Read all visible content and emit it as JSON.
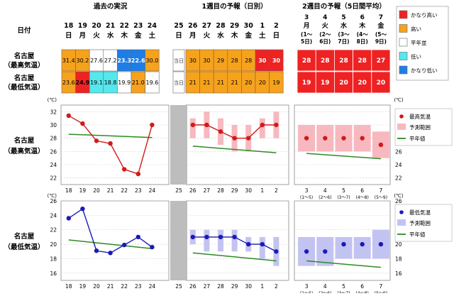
{
  "headers": {
    "past": "過去の実況",
    "week1": "1週目の予報（日別）",
    "week2": "2週目の予報（5日間平均）",
    "date_label": "日付"
  },
  "today_label": "当日",
  "days_past": [
    {
      "d": "18",
      "w": "日"
    },
    {
      "d": "19",
      "w": "月"
    },
    {
      "d": "20",
      "w": "火"
    },
    {
      "d": "21",
      "w": "水"
    },
    {
      "d": "22",
      "w": "木"
    },
    {
      "d": "23",
      "w": "金"
    },
    {
      "d": "24",
      "w": "土"
    }
  ],
  "day_today": {
    "d": "25",
    "w": "日"
  },
  "days_w1": [
    {
      "d": "26",
      "w": "月"
    },
    {
      "d": "27",
      "w": "火"
    },
    {
      "d": "28",
      "w": "水"
    },
    {
      "d": "29",
      "w": "木"
    },
    {
      "d": "30",
      "w": "金"
    },
    {
      "d": "1",
      "w": "土"
    },
    {
      "d": "2",
      "w": "日"
    }
  ],
  "days_w2": [
    {
      "d": "3",
      "w": "月",
      "r1": "(1～",
      "r2": "5日)",
      "range": "(1～5)"
    },
    {
      "d": "4",
      "w": "火",
      "r1": "(2～",
      "r2": "6日)",
      "range": "(2～6)"
    },
    {
      "d": "5",
      "w": "水",
      "r1": "(3～",
      "r2": "7日)",
      "range": "(3～7)"
    },
    {
      "d": "6",
      "w": "木",
      "r1": "(4～",
      "r2": "8日)",
      "range": "(4～8)"
    },
    {
      "d": "7",
      "w": "金",
      "r1": "(5～",
      "r2": "9日)",
      "range": "(5～9)"
    }
  ],
  "rows": {
    "max_label_1": "名古屋",
    "max_label_2": "（最高気温）",
    "min_label_1": "名古屋",
    "min_label_2": "（最低気温）"
  },
  "table": {
    "max": {
      "past": [
        {
          "v": "31.4",
          "c": "high"
        },
        {
          "v": "30.2",
          "c": "high"
        },
        {
          "v": "27.6",
          "c": "normal"
        },
        {
          "v": "27.2",
          "c": "normal"
        },
        {
          "v": "23.3",
          "c": "verylow"
        },
        {
          "v": "22.6",
          "c": "verylow"
        },
        {
          "v": "30.0",
          "c": "high"
        }
      ],
      "w1": [
        {
          "v": "30",
          "c": "high"
        },
        {
          "v": "30",
          "c": "high"
        },
        {
          "v": "29",
          "c": "high"
        },
        {
          "v": "28",
          "c": "high"
        },
        {
          "v": "28",
          "c": "high"
        },
        {
          "v": "30",
          "c": "veryhigh"
        },
        {
          "v": "30",
          "c": "veryhigh"
        }
      ],
      "w2": [
        {
          "v": "28",
          "c": "veryhigh"
        },
        {
          "v": "28",
          "c": "veryhigh"
        },
        {
          "v": "28",
          "c": "veryhigh"
        },
        {
          "v": "28",
          "c": "veryhigh"
        },
        {
          "v": "27",
          "c": "veryhigh"
        }
      ]
    },
    "min": {
      "past": [
        {
          "v": "23.6",
          "c": "high"
        },
        {
          "v": "24.9",
          "c": "veryhigh"
        },
        {
          "v": "19.1",
          "c": "low"
        },
        {
          "v": "18.8",
          "c": "low"
        },
        {
          "v": "19.9",
          "c": "normal"
        },
        {
          "v": "21.0",
          "c": "high"
        },
        {
          "v": "19.6",
          "c": "normal"
        }
      ],
      "w1": [
        {
          "v": "21",
          "c": "high"
        },
        {
          "v": "21",
          "c": "high"
        },
        {
          "v": "21",
          "c": "high"
        },
        {
          "v": "21",
          "c": "high"
        },
        {
          "v": "20",
          "c": "high"
        },
        {
          "v": "20",
          "c": "high"
        },
        {
          "v": "19",
          "c": "high"
        }
      ],
      "w2": [
        {
          "v": "19",
          "c": "veryhigh"
        },
        {
          "v": "19",
          "c": "veryhigh"
        },
        {
          "v": "20",
          "c": "veryhigh"
        },
        {
          "v": "20",
          "c": "veryhigh"
        },
        {
          "v": "20",
          "c": "veryhigh"
        }
      ]
    }
  },
  "legend_table": [
    {
      "label": "かなり高い",
      "color": "#ee2222"
    },
    {
      "label": "高い",
      "color": "#f7a21c"
    },
    {
      "label": "平年並",
      "color": "#ffffff"
    },
    {
      "label": "低い",
      "color": "#55e8ee"
    },
    {
      "label": "かなり低い",
      "color": "#1e7ee8"
    }
  ],
  "colors": {
    "veryhigh": "#ee2222",
    "high": "#f7a21c",
    "normal": "#ffffff",
    "low": "#55e8ee",
    "verylow": "#1e7ee8",
    "max_line": "#d11a1a",
    "min_line": "#1b1bb5",
    "normal_line": "#2e8b22",
    "max_band": "#f7b8bf",
    "min_band": "#c3c3f2",
    "today": "#bdbdbd"
  },
  "chart_data": [
    {
      "type": "line",
      "name": "max",
      "unit": "(℃)",
      "ylim": [
        21,
        33
      ],
      "yticks": [
        22,
        24,
        26,
        28,
        30,
        32
      ],
      "legend": {
        "obs": "最高気温",
        "band": "予測範囲",
        "normal": "平年値"
      },
      "past": {
        "x": [
          "18",
          "19",
          "20",
          "21",
          "22",
          "23",
          "24"
        ],
        "values": [
          31.4,
          30.2,
          27.6,
          27.2,
          23.3,
          22.6,
          30.0
        ],
        "normal": [
          28.6,
          28.1
        ]
      },
      "w1": {
        "x": [
          "26",
          "27",
          "28",
          "29",
          "30",
          "1",
          "2"
        ],
        "values": [
          30,
          30,
          29,
          28,
          28,
          30,
          30
        ],
        "range": [
          [
            28,
            31
          ],
          [
            28,
            32
          ],
          [
            27,
            31
          ],
          [
            26,
            30
          ],
          [
            26,
            30
          ],
          [
            28,
            31
          ],
          [
            28,
            32
          ]
        ],
        "normal": [
          26.8,
          25.8
        ]
      },
      "w2": {
        "x": [
          "3",
          "4",
          "5",
          "6",
          "7"
        ],
        "values": [
          28,
          28,
          28,
          28,
          27
        ],
        "range": [
          [
            26,
            30
          ],
          [
            26,
            30
          ],
          [
            26,
            30
          ],
          [
            26,
            30
          ],
          [
            25,
            29
          ]
        ],
        "normal": [
          25.7,
          24.9
        ]
      }
    },
    {
      "type": "line",
      "name": "min",
      "unit": "(℃)",
      "ylim": [
        15,
        26
      ],
      "yticks": [
        16,
        18,
        20,
        22,
        24,
        26
      ],
      "legend": {
        "obs": "最低気温",
        "band": "予測範囲",
        "normal": "平年値"
      },
      "past": {
        "x": [
          "18",
          "19",
          "20",
          "21",
          "22",
          "23",
          "24"
        ],
        "values": [
          23.6,
          24.9,
          19.1,
          18.8,
          19.9,
          21.0,
          19.6
        ],
        "normal": [
          20.6,
          19.4
        ]
      },
      "w1": {
        "x": [
          "26",
          "27",
          "28",
          "29",
          "30",
          "1",
          "2"
        ],
        "values": [
          21,
          21,
          21,
          21,
          20,
          20,
          19
        ],
        "range": [
          [
            20,
            22
          ],
          [
            19,
            22
          ],
          [
            19,
            22
          ],
          [
            19,
            22
          ],
          [
            19,
            21
          ],
          [
            18,
            21
          ],
          [
            17,
            21
          ]
        ],
        "normal": [
          18.8,
          17.7
        ]
      },
      "w2": {
        "x": [
          "3",
          "4",
          "5",
          "6",
          "7"
        ],
        "values": [
          19,
          19,
          20,
          20,
          20
        ],
        "range": [
          [
            17,
            21
          ],
          [
            17,
            21
          ],
          [
            18,
            21
          ],
          [
            18,
            21
          ],
          [
            18,
            22
          ]
        ],
        "normal": [
          17.7,
          16.8
        ]
      }
    }
  ]
}
